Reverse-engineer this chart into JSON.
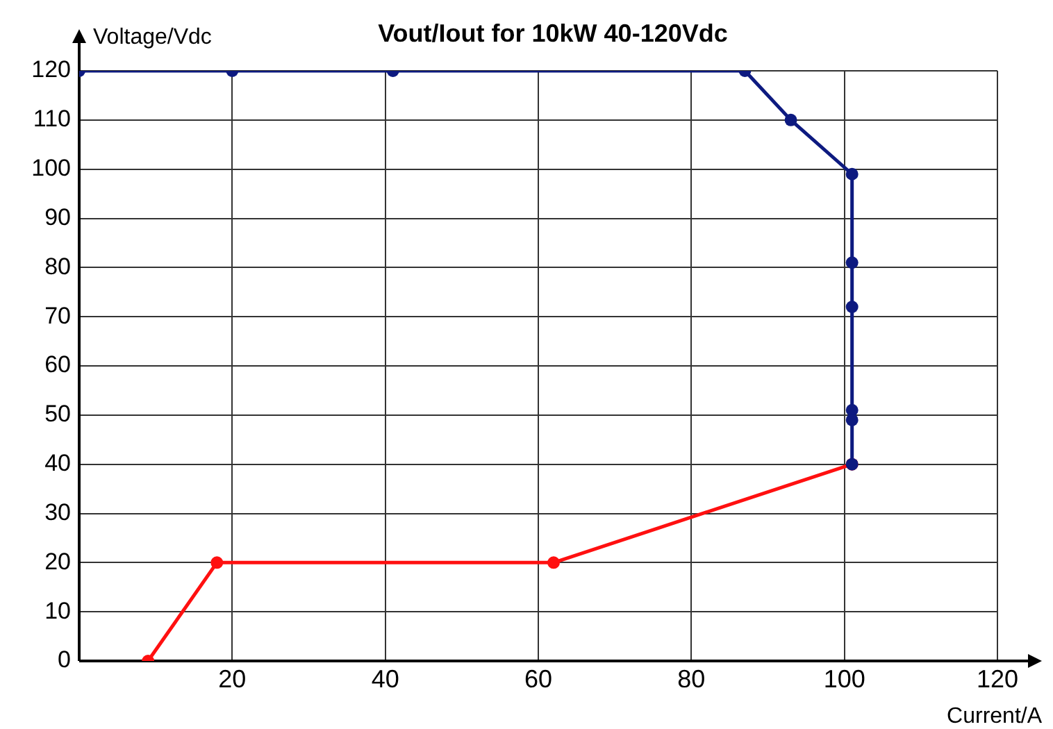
{
  "chart_data": {
    "type": "line",
    "title": "Vout/Iout for 10kW 40-120Vdc",
    "xlabel": "Current/A",
    "ylabel": "Voltage/Vdc",
    "series": [
      {
        "color": "#0d1a80",
        "x": [
          0,
          20,
          41,
          87,
          93,
          101,
          101,
          101,
          101,
          101,
          101
        ],
        "values": [
          120,
          120,
          120,
          120,
          110,
          99,
          81,
          72,
          51,
          49,
          40
        ]
      },
      {
        "color": "#ff1010",
        "x": [
          9,
          18,
          62,
          101
        ],
        "values": [
          0,
          20,
          20,
          40
        ]
      }
    ],
    "xlim": [
      0,
      120
    ],
    "xticks": [
      {
        "value": 0,
        "label": null
      },
      20,
      40,
      60,
      80,
      100,
      120
    ],
    "ylim": [
      0,
      120
    ],
    "yticks": [
      0,
      10,
      20,
      30,
      40,
      50,
      60,
      70,
      80,
      90,
      100,
      110,
      120
    ],
    "grid": true,
    "legend": false,
    "marker": "circle",
    "line_style": "solid"
  }
}
